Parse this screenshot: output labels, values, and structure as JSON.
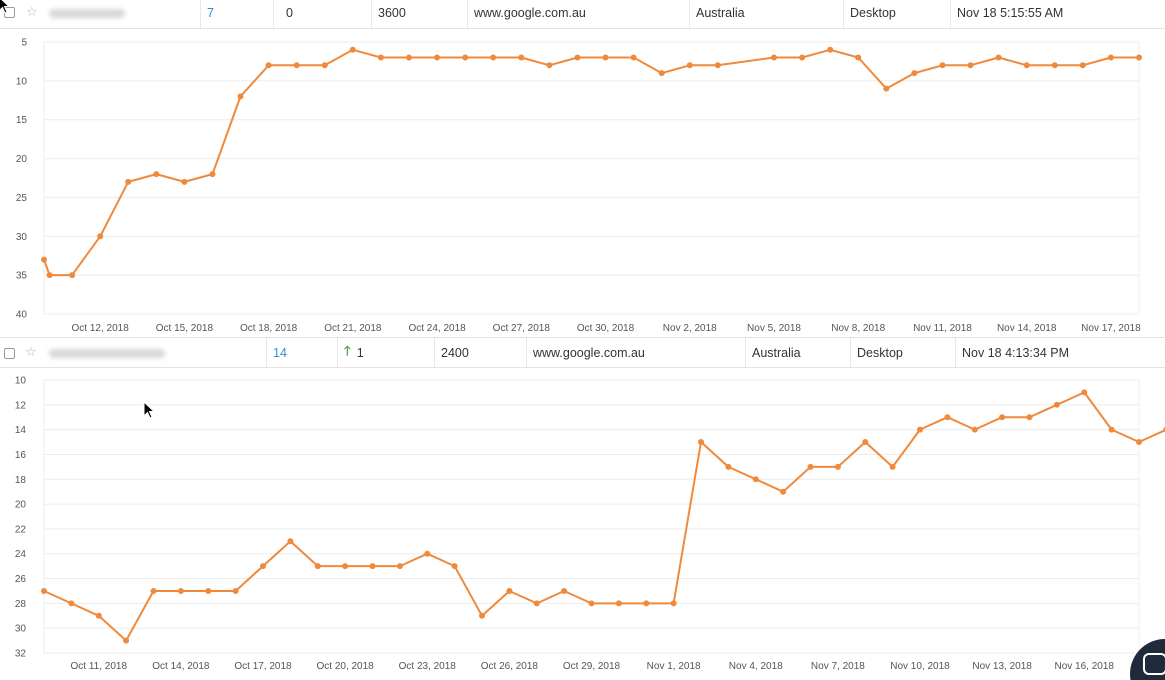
{
  "rows": [
    {
      "rank": "7",
      "change": "0",
      "search_volume": "3600",
      "engine": "www.google.com.au",
      "location": "Australia",
      "device": "Desktop",
      "updated": "Nov 18 5:15:55 AM"
    },
    {
      "rank": "14",
      "change": "1",
      "change_icon": "arrow-up-icon",
      "search_volume": "2400",
      "engine": "www.google.com.au",
      "location": "Australia",
      "device": "Desktop",
      "updated": "Nov 18 4:13:34 PM"
    }
  ],
  "colors": {
    "series": "#ef8a3c",
    "rank_link": "#2f8fd4",
    "up_arrow": "#4caf50"
  },
  "icons": {
    "favorite": "star-icon",
    "chat": "chat-icon"
  },
  "chart_data": [
    {
      "type": "line",
      "title": "",
      "xlabel": "",
      "ylabel": "",
      "y_inverted": true,
      "ylim": [
        5,
        40
      ],
      "yticks": [
        5,
        10,
        15,
        20,
        25,
        30,
        35,
        40
      ],
      "grid": true,
      "x_tick_labels": [
        "Oct 12, 2018",
        "Oct 15, 2018",
        "Oct 18, 2018",
        "Oct 21, 2018",
        "Oct 24, 2018",
        "Oct 27, 2018",
        "Oct 30, 2018",
        "Nov 2, 2018",
        "Nov 5, 2018",
        "Nov 8, 2018",
        "Nov 11, 2018",
        "Nov 14, 2018",
        "Nov 17, 2018"
      ],
      "xlim": [
        "Oct 10, 2018",
        "Nov 18, 2018"
      ],
      "series": [
        {
          "points": [
            [
              "Oct 10, 2018",
              33
            ],
            [
              "Oct 10, 2018",
              35
            ],
            [
              "Oct 11, 2018",
              35
            ],
            [
              "Oct 12, 2018",
              30
            ],
            [
              "Oct 13, 2018",
              23
            ],
            [
              "Oct 14, 2018",
              22
            ],
            [
              "Oct 15, 2018",
              23
            ],
            [
              "Oct 16, 2018",
              22
            ],
            [
              "Oct 17, 2018",
              12
            ],
            [
              "Oct 18, 2018",
              8
            ],
            [
              "Oct 19, 2018",
              8
            ],
            [
              "Oct 20, 2018",
              8
            ],
            [
              "Oct 21, 2018",
              6
            ],
            [
              "Oct 22, 2018",
              7
            ],
            [
              "Oct 23, 2018",
              7
            ],
            [
              "Oct 24, 2018",
              7
            ],
            [
              "Oct 25, 2018",
              7
            ],
            [
              "Oct 26, 2018",
              7
            ],
            [
              "Oct 27, 2018",
              7
            ],
            [
              "Oct 28, 2018",
              8
            ],
            [
              "Oct 29, 2018",
              7
            ],
            [
              "Oct 30, 2018",
              7
            ],
            [
              "Oct 31, 2018",
              7
            ],
            [
              "Nov 1, 2018",
              9
            ],
            [
              "Nov 2, 2018",
              8
            ],
            [
              "Nov 3, 2018",
              8
            ],
            [
              "Nov 5, 2018",
              7
            ],
            [
              "Nov 6, 2018",
              7
            ],
            [
              "Nov 7, 2018",
              6
            ],
            [
              "Nov 8, 2018",
              7
            ],
            [
              "Nov 9, 2018",
              11
            ],
            [
              "Nov 10, 2018",
              9
            ],
            [
              "Nov 11, 2018",
              8
            ],
            [
              "Nov 12, 2018",
              8
            ],
            [
              "Nov 13, 2018",
              7
            ],
            [
              "Nov 14, 2018",
              8
            ],
            [
              "Nov 15, 2018",
              8
            ],
            [
              "Nov 16, 2018",
              8
            ],
            [
              "Nov 17, 2018",
              7
            ],
            [
              "Nov 18, 2018",
              7
            ]
          ]
        }
      ]
    },
    {
      "type": "line",
      "title": "",
      "xlabel": "",
      "ylabel": "",
      "y_inverted": true,
      "ylim": [
        10,
        32
      ],
      "yticks": [
        10,
        12,
        14,
        16,
        18,
        20,
        22,
        24,
        26,
        28,
        30,
        32
      ],
      "grid": true,
      "x_tick_labels": [
        "Oct 11, 2018",
        "Oct 14, 2018",
        "Oct 17, 2018",
        "Oct 20, 2018",
        "Oct 23, 2018",
        "Oct 26, 2018",
        "Oct 29, 2018",
        "Nov 1, 2018",
        "Nov 4, 2018",
        "Nov 7, 2018",
        "Nov 10, 2018",
        "Nov 13, 2018",
        "Nov 16, 2018"
      ],
      "xlim": [
        "Oct 9, 2018",
        "Nov 18, 2018"
      ],
      "series": [
        {
          "points": [
            [
              "Oct 9, 2018",
              27
            ],
            [
              "Oct 10, 2018",
              28
            ],
            [
              "Oct 11, 2018",
              29
            ],
            [
              "Oct 12, 2018",
              31
            ],
            [
              "Oct 13, 2018",
              27
            ],
            [
              "Oct 14, 2018",
              27
            ],
            [
              "Oct 15, 2018",
              27
            ],
            [
              "Oct 16, 2018",
              27
            ],
            [
              "Oct 17, 2018",
              25
            ],
            [
              "Oct 18, 2018",
              23
            ],
            [
              "Oct 19, 2018",
              25
            ],
            [
              "Oct 20, 2018",
              25
            ],
            [
              "Oct 21, 2018",
              25
            ],
            [
              "Oct 22, 2018",
              25
            ],
            [
              "Oct 23, 2018",
              24
            ],
            [
              "Oct 24, 2018",
              25
            ],
            [
              "Oct 25, 2018",
              29
            ],
            [
              "Oct 26, 2018",
              27
            ],
            [
              "Oct 27, 2018",
              28
            ],
            [
              "Oct 28, 2018",
              27
            ],
            [
              "Oct 29, 2018",
              28
            ],
            [
              "Oct 30, 2018",
              28
            ],
            [
              "Oct 31, 2018",
              28
            ],
            [
              "Nov 1, 2018",
              28
            ],
            [
              "Nov 2, 2018",
              15
            ],
            [
              "Nov 3, 2018",
              17
            ],
            [
              "Nov 4, 2018",
              18
            ],
            [
              "Nov 5, 2018",
              19
            ],
            [
              "Nov 6, 2018",
              17
            ],
            [
              "Nov 7, 2018",
              17
            ],
            [
              "Nov 8, 2018",
              15
            ],
            [
              "Nov 9, 2018",
              17
            ],
            [
              "Nov 10, 2018",
              14
            ],
            [
              "Nov 11, 2018",
              13
            ],
            [
              "Nov 12, 2018",
              14
            ],
            [
              "Nov 13, 2018",
              13
            ],
            [
              "Nov 14, 2018",
              13
            ],
            [
              "Nov 15, 2018",
              12
            ],
            [
              "Nov 16, 2018",
              11
            ],
            [
              "Nov 17, 2018",
              14
            ],
            [
              "Nov 18, 2018",
              15
            ],
            [
              "Nov 19, 2018",
              14
            ]
          ]
        }
      ]
    }
  ]
}
